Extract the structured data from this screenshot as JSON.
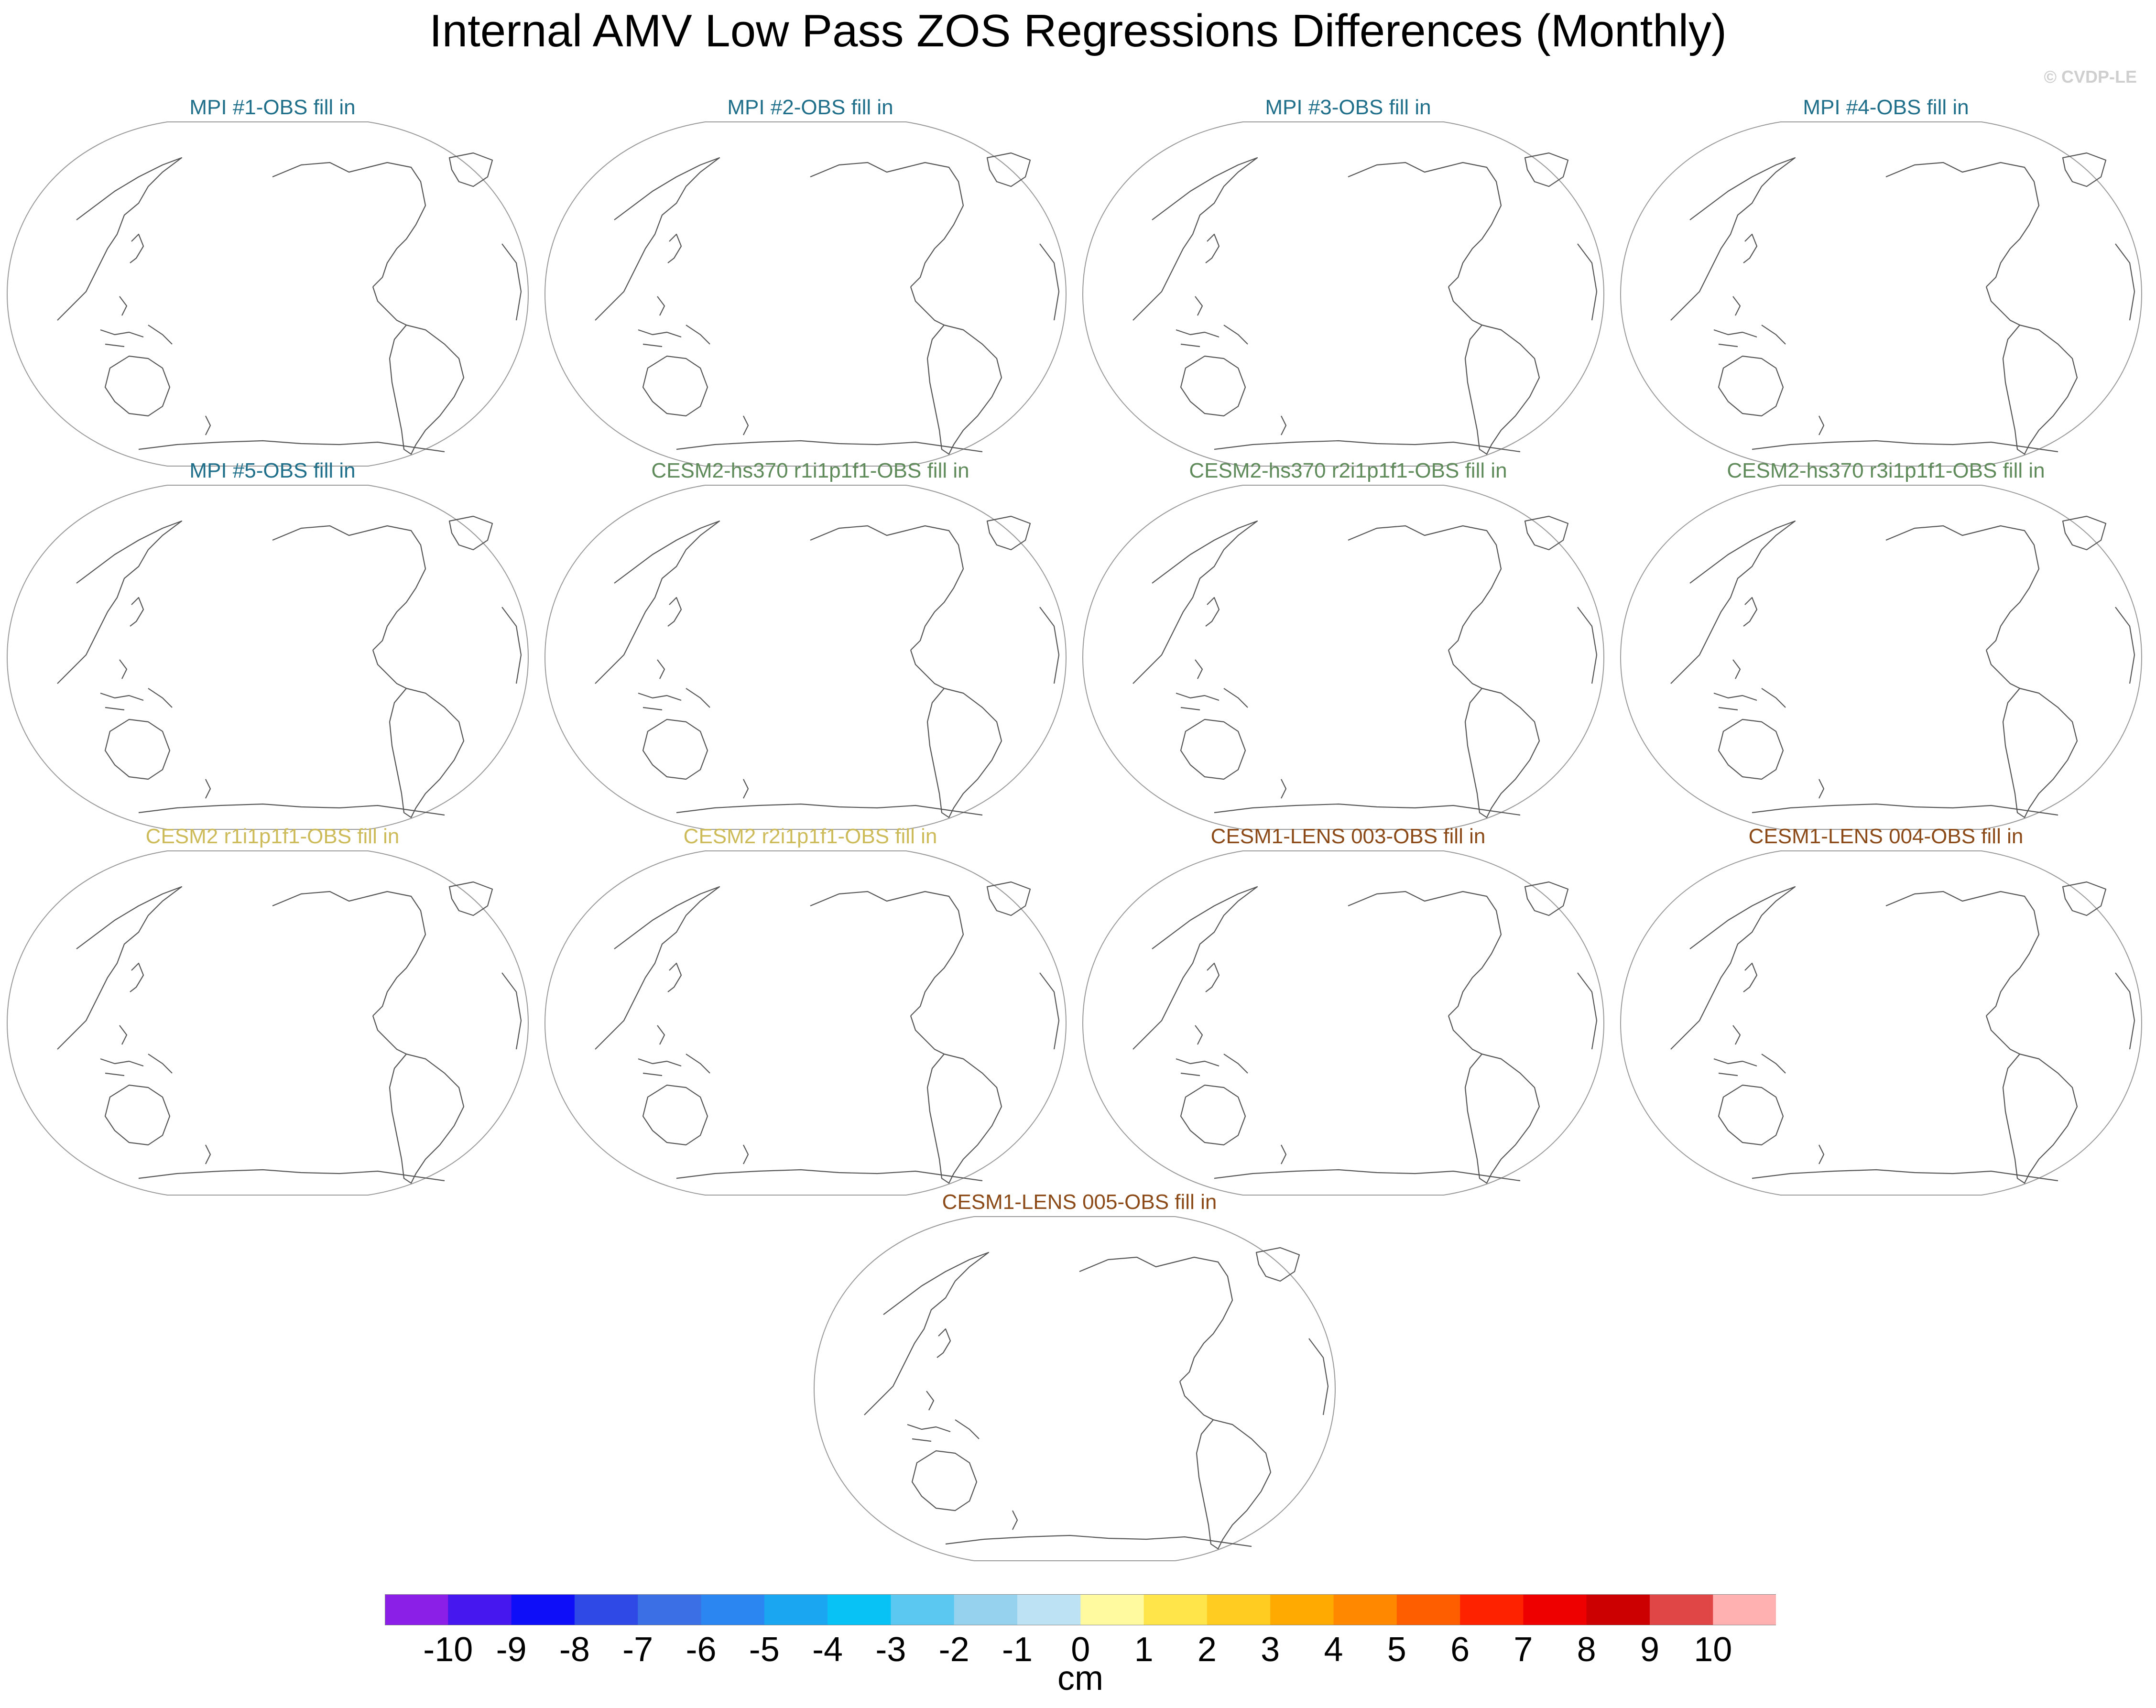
{
  "title": "Internal AMV Low Pass ZOS Regressions Differences (Monthly)",
  "copyright": "© CVDP-LE",
  "panels": [
    {
      "title": "MPI #1-OBS fill in",
      "color": "#1f6f8b"
    },
    {
      "title": "MPI #2-OBS fill in",
      "color": "#1f6f8b"
    },
    {
      "title": "MPI #3-OBS fill in",
      "color": "#1f6f8b"
    },
    {
      "title": "MPI #4-OBS fill in",
      "color": "#1f6f8b"
    },
    {
      "title": "MPI #5-OBS fill in",
      "color": "#1f6f8b"
    },
    {
      "title": "CESM2-hs370 r1i1p1f1-OBS fill in",
      "color": "#5f8a5a"
    },
    {
      "title": "CESM2-hs370 r2i1p1f1-OBS fill in",
      "color": "#5f8a5a"
    },
    {
      "title": "CESM2-hs370 r3i1p1f1-OBS fill in",
      "color": "#5f8a5a"
    },
    {
      "title": "CESM2 r1i1p1f1-OBS fill in",
      "color": "#cdbb5a"
    },
    {
      "title": "CESM2 r2i1p1f1-OBS fill in",
      "color": "#cdbb5a"
    },
    {
      "title": "CESM1-LENS 003-OBS fill in",
      "color": "#8b4a17"
    },
    {
      "title": "CESM1-LENS 004-OBS fill in",
      "color": "#8b4a17"
    },
    {
      "title": "CESM1-LENS 005-OBS fill in",
      "color": "#8b4a17"
    }
  ],
  "chart_data": {
    "type": "heatmap",
    "title": "Internal AMV Low Pass ZOS Regressions Differences (Monthly)",
    "note": "All 13 map panels show coastlines only (no filled data).",
    "colorbar": {
      "units": "cm",
      "levels": [
        "-10",
        "-9",
        "-8",
        "-7",
        "-6",
        "-5",
        "-4",
        "-3",
        "-2",
        "-1",
        "0",
        "1",
        "2",
        "3",
        "4",
        "5",
        "6",
        "7",
        "8",
        "9",
        "10"
      ],
      "colors": [
        "#8b1fe8",
        "#4617ee",
        "#0e0ef8",
        "#2e49e6",
        "#3a6fe6",
        "#2b86f2",
        "#1ba6f2",
        "#08c2f6",
        "#5ac8f0",
        "#96d2ee",
        "#bde2f4",
        "#fff9a0",
        "#ffe549",
        "#ffcc22",
        "#ffaa00",
        "#ff8800",
        "#ff5e00",
        "#ff2200",
        "#ee0000",
        "#cc0000",
        "#e04646",
        "#ffb0b0"
      ]
    }
  }
}
